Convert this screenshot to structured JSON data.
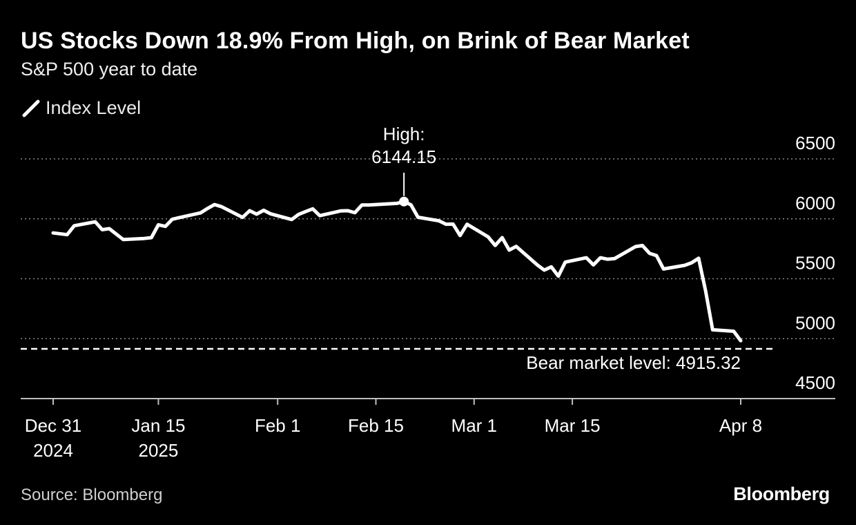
{
  "header": {
    "title": "US Stocks Down 18.9% From High, on Brink of Bear Market",
    "subtitle": "S&P 500 year to date"
  },
  "legend": {
    "label": "Index Level",
    "icon": "line-swatch-icon"
  },
  "footer": {
    "source": "Source: Bloomberg",
    "brand": "Bloomberg"
  },
  "colors": {
    "background": "#000000",
    "line": "#ffffff",
    "grid": "#8a8a8a",
    "axis": "#bfbfbf"
  },
  "chart_data": {
    "type": "line",
    "title": "US Stocks Down 18.9% From High, on Brink of Bear Market",
    "subtitle": "S&P 500 year to date",
    "xlabel": "",
    "ylabel": "",
    "ylim": [
      4500,
      6500
    ],
    "xlim": [
      "2024-12-31",
      "2025-04-08"
    ],
    "y_ticks": [
      6500,
      6000,
      5500,
      5000,
      4500
    ],
    "y_axis_side": "right",
    "grid": "horizontal dotted",
    "legend_position": "top-left",
    "x_ticks": [
      {
        "date": "2024-12-31",
        "label": [
          "Dec 31",
          "2024"
        ]
      },
      {
        "date": "2025-01-15",
        "label": [
          "Jan 15",
          "2025"
        ]
      },
      {
        "date": "2025-02-01",
        "label": [
          "Feb 1"
        ]
      },
      {
        "date": "2025-02-15",
        "label": [
          "Feb 15"
        ]
      },
      {
        "date": "2025-03-01",
        "label": [
          "Mar 1"
        ]
      },
      {
        "date": "2025-03-15",
        "label": [
          "Mar 15"
        ]
      },
      {
        "date": "2025-04-08",
        "label": [
          "Apr 8"
        ]
      }
    ],
    "series": [
      {
        "name": "Index Level",
        "points": [
          [
            "2024-12-31",
            5882
          ],
          [
            "2025-01-02",
            5868
          ],
          [
            "2025-01-03",
            5942
          ],
          [
            "2025-01-06",
            5975
          ],
          [
            "2025-01-07",
            5909
          ],
          [
            "2025-01-08",
            5918
          ],
          [
            "2025-01-10",
            5827
          ],
          [
            "2025-01-13",
            5836
          ],
          [
            "2025-01-14",
            5843
          ],
          [
            "2025-01-15",
            5950
          ],
          [
            "2025-01-16",
            5937
          ],
          [
            "2025-01-17",
            5997
          ],
          [
            "2025-01-21",
            6049
          ],
          [
            "2025-01-22",
            6086
          ],
          [
            "2025-01-23",
            6119
          ],
          [
            "2025-01-24",
            6101
          ],
          [
            "2025-01-27",
            6012
          ],
          [
            "2025-01-28",
            6068
          ],
          [
            "2025-01-29",
            6039
          ],
          [
            "2025-01-30",
            6071
          ],
          [
            "2025-01-31",
            6041
          ],
          [
            "2025-02-03",
            5994
          ],
          [
            "2025-02-04",
            6037
          ],
          [
            "2025-02-05",
            6061
          ],
          [
            "2025-02-06",
            6083
          ],
          [
            "2025-02-07",
            6026
          ],
          [
            "2025-02-10",
            6066
          ],
          [
            "2025-02-11",
            6068
          ],
          [
            "2025-02-12",
            6051
          ],
          [
            "2025-02-13",
            6115
          ],
          [
            "2025-02-14",
            6115
          ],
          [
            "2025-02-18",
            6129
          ],
          [
            "2025-02-19",
            6144.15
          ],
          [
            "2025-02-20",
            6117
          ],
          [
            "2025-02-21",
            6013
          ],
          [
            "2025-02-24",
            5983
          ],
          [
            "2025-02-25",
            5955
          ],
          [
            "2025-02-26",
            5956
          ],
          [
            "2025-02-27",
            5861
          ],
          [
            "2025-02-28",
            5955
          ],
          [
            "2025-03-03",
            5849
          ],
          [
            "2025-03-04",
            5778
          ],
          [
            "2025-03-05",
            5843
          ],
          [
            "2025-03-06",
            5739
          ],
          [
            "2025-03-07",
            5770
          ],
          [
            "2025-03-10",
            5615
          ],
          [
            "2025-03-11",
            5572
          ],
          [
            "2025-03-12",
            5599
          ],
          [
            "2025-03-13",
            5522
          ],
          [
            "2025-03-14",
            5639
          ],
          [
            "2025-03-17",
            5675
          ],
          [
            "2025-03-18",
            5615
          ],
          [
            "2025-03-19",
            5675
          ],
          [
            "2025-03-20",
            5663
          ],
          [
            "2025-03-21",
            5668
          ],
          [
            "2025-03-24",
            5768
          ],
          [
            "2025-03-25",
            5777
          ],
          [
            "2025-03-26",
            5712
          ],
          [
            "2025-03-27",
            5693
          ],
          [
            "2025-03-28",
            5581
          ],
          [
            "2025-03-31",
            5612
          ],
          [
            "2025-04-01",
            5633
          ],
          [
            "2025-04-02",
            5671
          ],
          [
            "2025-04-03",
            5397
          ],
          [
            "2025-04-04",
            5074
          ],
          [
            "2025-04-07",
            5062
          ],
          [
            "2025-04-08",
            4983
          ]
        ]
      }
    ],
    "annotations": [
      {
        "type": "point",
        "date": "2025-02-19",
        "value": 6144.15,
        "label": [
          "High:",
          "6144.15"
        ]
      },
      {
        "type": "hline",
        "value": 4915.32,
        "style": "dashed",
        "label": "Bear market level: 4915.32"
      }
    ]
  }
}
